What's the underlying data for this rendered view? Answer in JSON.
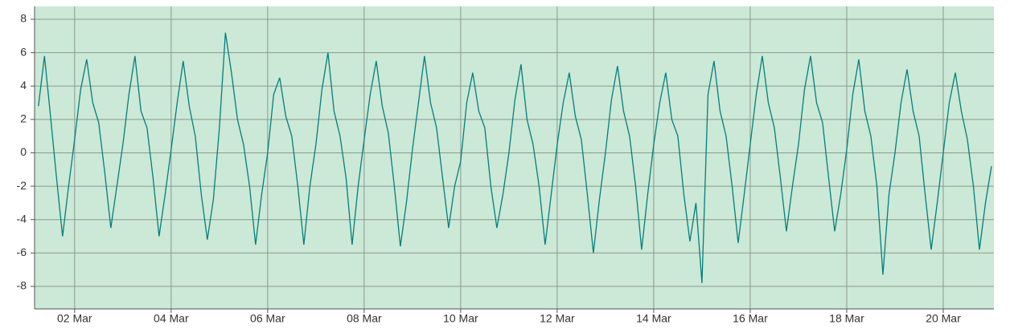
{
  "chart_data": {
    "type": "line",
    "x": [
      1.25,
      1.375,
      1.5,
      1.625,
      1.75,
      1.875,
      2,
      2.125,
      2.25,
      2.375,
      2.5,
      2.625,
      2.75,
      2.875,
      3,
      3.125,
      3.25,
      3.375,
      3.5,
      3.625,
      3.75,
      3.875,
      4,
      4.125,
      4.25,
      4.375,
      4.5,
      4.625,
      4.75,
      4.875,
      5,
      5.125,
      5.25,
      5.375,
      5.5,
      5.625,
      5.75,
      5.875,
      6,
      6.125,
      6.25,
      6.375,
      6.5,
      6.625,
      6.75,
      6.875,
      7,
      7.125,
      7.25,
      7.375,
      7.5,
      7.625,
      7.75,
      7.875,
      8,
      8.125,
      8.25,
      8.375,
      8.5,
      8.625,
      8.75,
      8.875,
      9,
      9.125,
      9.25,
      9.375,
      9.5,
      9.625,
      9.75,
      9.875,
      10,
      10.125,
      10.25,
      10.375,
      10.5,
      10.625,
      10.75,
      10.875,
      11,
      11.125,
      11.25,
      11.375,
      11.5,
      11.625,
      11.75,
      11.875,
      12,
      12.125,
      12.25,
      12.375,
      12.5,
      12.625,
      12.75,
      12.875,
      13,
      13.125,
      13.25,
      13.375,
      13.5,
      13.625,
      13.75,
      13.875,
      14,
      14.125,
      14.25,
      14.375,
      14.5,
      14.625,
      14.75,
      14.875,
      15,
      15.125,
      15.25,
      15.375,
      15.5,
      15.625,
      15.75,
      15.875,
      16,
      16.125,
      16.25,
      16.375,
      16.5,
      16.625,
      16.75,
      16.875,
      17,
      17.125,
      17.25,
      17.375,
      17.5,
      17.625,
      17.75,
      17.875,
      18,
      18.125,
      18.25,
      18.375,
      18.5,
      18.625,
      18.75,
      18.875,
      19,
      19.125,
      19.25,
      19.375,
      19.5,
      19.625,
      19.75,
      19.875,
      20,
      20.125,
      20.25,
      20.375,
      20.5,
      20.625,
      20.75,
      20.875,
      21
    ],
    "series": [
      {
        "color": "#008080",
        "values": [
          2.8,
          5.8,
          2.2,
          -1.5,
          -5.0,
          -2.0,
          0.8,
          3.8,
          5.6,
          3.0,
          1.8,
          -1.2,
          -4.5,
          -2.0,
          0.5,
          3.5,
          5.8,
          2.5,
          1.5,
          -1.5,
          -5.0,
          -2.5,
          0.2,
          3.0,
          5.5,
          2.8,
          1.0,
          -2.5,
          -5.2,
          -2.8,
          1.5,
          7.2,
          4.8,
          2.0,
          0.5,
          -2.0,
          -5.5,
          -2.5,
          0.0,
          3.5,
          4.5,
          2.2,
          1.0,
          -2.0,
          -5.5,
          -2.0,
          0.5,
          3.8,
          6.0,
          2.5,
          1.0,
          -1.5,
          -5.5,
          -2.0,
          0.8,
          3.5,
          5.5,
          2.8,
          1.2,
          -2.0,
          -5.6,
          -3.0,
          0.2,
          3.0,
          5.8,
          3.0,
          1.5,
          -1.5,
          -4.5,
          -2.0,
          -0.5,
          3.0,
          4.8,
          2.5,
          1.5,
          -2.0,
          -4.5,
          -2.5,
          0.0,
          3.2,
          5.3,
          2.0,
          0.5,
          -2.0,
          -5.5,
          -2.5,
          0.5,
          3.0,
          4.8,
          2.2,
          0.8,
          -2.5,
          -6.0,
          -2.8,
          0.0,
          3.2,
          5.2,
          2.5,
          1.0,
          -2.0,
          -5.8,
          -2.5,
          0.5,
          3.0,
          4.8,
          2.0,
          1.0,
          -2.5,
          -5.3,
          -3.0,
          -7.8,
          3.5,
          5.5,
          2.5,
          1.0,
          -2.0,
          -5.4,
          -2.5,
          0.5,
          3.5,
          5.8,
          3.0,
          1.5,
          -1.5,
          -4.7,
          -2.0,
          0.5,
          3.8,
          5.8,
          3.0,
          1.8,
          -1.5,
          -4.7,
          -2.5,
          0.2,
          3.5,
          5.6,
          2.5,
          1.0,
          -2.0,
          -7.3,
          -2.5,
          0.0,
          3.0,
          5.0,
          2.5,
          1.0,
          -2.5,
          -5.8,
          -3.0,
          0.0,
          3.0,
          4.8,
          2.5,
          0.8,
          -2.0,
          -5.8,
          -3.0,
          -0.8
        ]
      }
    ],
    "xlim": [
      1.17,
      21.05
    ],
    "xticks": [
      {
        "value": 2,
        "label": "02 Mar"
      },
      {
        "value": 4,
        "label": "04 Mar"
      },
      {
        "value": 6,
        "label": "06 Mar"
      },
      {
        "value": 8,
        "label": "08 Mar"
      },
      {
        "value": 10,
        "label": "10 Mar"
      },
      {
        "value": 12,
        "label": "12 Mar"
      },
      {
        "value": 14,
        "label": "14 Mar"
      },
      {
        "value": 16,
        "label": "16 Mar"
      },
      {
        "value": 18,
        "label": "18 Mar"
      },
      {
        "value": 20,
        "label": "20 Mar"
      }
    ],
    "ylim": [
      -9.35,
      8.77
    ],
    "yticks": [
      -8,
      -6,
      -4,
      -2,
      0,
      2,
      4,
      6,
      8
    ],
    "grid": true,
    "background": "#cce8d6"
  }
}
